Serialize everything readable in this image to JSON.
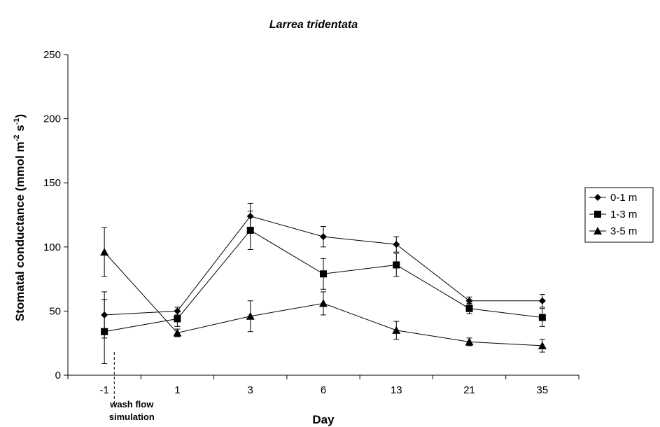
{
  "chart_data": {
    "type": "line",
    "title": "Larrea tridentata",
    "xlabel": "Day",
    "ylabel_main": "Stomatal conductance (mmol m",
    "ylabel_sup1": "-2",
    "ylabel_mid": " s",
    "ylabel_sup2": "-1",
    "ylabel_end": ")",
    "categories": [
      "-1",
      "1",
      "3",
      "6",
      "13",
      "21",
      "35"
    ],
    "ylim": [
      0,
      250
    ],
    "yticks": [
      0,
      50,
      100,
      150,
      200,
      250
    ],
    "grid": false,
    "legend_position": "right",
    "annotation": {
      "line1": "wash flow",
      "line2": "simulation",
      "after_category_index": 0
    },
    "series": [
      {
        "name": "0-1 m",
        "marker": "diamond",
        "values": [
          47,
          50,
          124,
          108,
          102,
          58,
          58
        ],
        "errors": [
          18,
          3,
          10,
          8,
          6,
          3,
          5
        ]
      },
      {
        "name": "1-3 m",
        "marker": "square",
        "values": [
          34,
          44,
          113,
          79,
          86,
          52,
          45
        ],
        "errors": [
          25,
          6,
          15,
          12,
          9,
          4,
          7
        ]
      },
      {
        "name": "3-5 m",
        "marker": "triangle",
        "values": [
          96,
          33,
          46,
          56,
          35,
          26,
          23
        ],
        "errors": [
          19,
          3,
          12,
          9,
          7,
          3,
          5
        ]
      }
    ]
  }
}
